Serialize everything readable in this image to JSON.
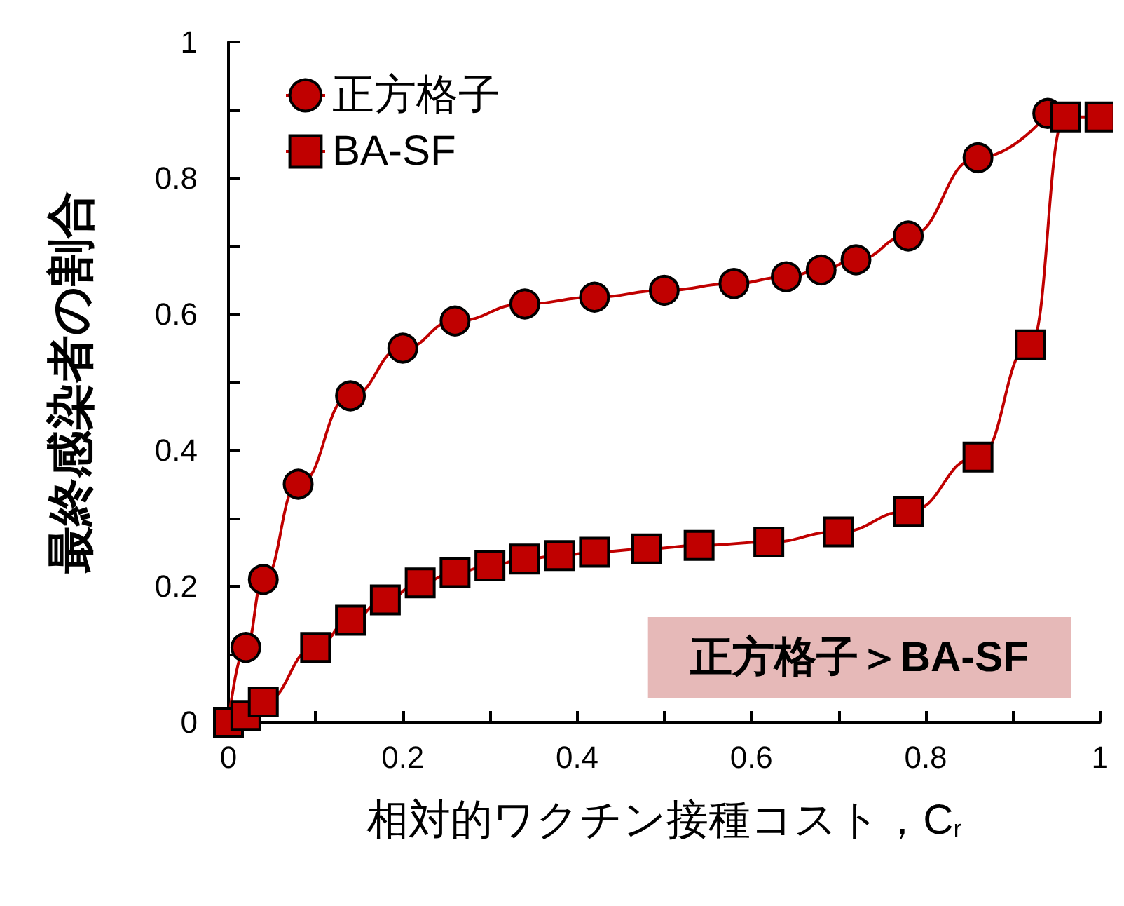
{
  "chart_data": {
    "type": "line",
    "xlabel": "相対的ワクチン接種コスト，C$_{r}$",
    "ylabel": "最終感染者の割合",
    "xlim": [
      0,
      1
    ],
    "xticks": [
      0,
      0.2,
      0.4,
      0.6,
      0.8,
      1
    ],
    "ylim": [
      0,
      1
    ],
    "yticks": [
      0,
      0.2,
      0.4,
      0.6,
      0.8,
      1
    ],
    "grid": false,
    "legend": "top left",
    "annotations": [
      "正方格子＞BA-SF"
    ],
    "series": [
      {
        "name": "正方格子",
        "color": "#c00000",
        "marker": "circle",
        "x": [
          0,
          0.02,
          0.04,
          0.08,
          0.14,
          0.2,
          0.26,
          0.34,
          0.42,
          0.5,
          0.58,
          0.64,
          0.68,
          0.72,
          0.78,
          0.86,
          0.94
        ],
        "values": [
          0,
          0.11,
          0.21,
          0.35,
          0.48,
          0.55,
          0.59,
          0.615,
          0.625,
          0.635,
          0.645,
          0.655,
          0.665,
          0.68,
          0.715,
          0.83,
          0.895
        ]
      },
      {
        "name": "BA-SF",
        "color": "#c00000",
        "marker": "square",
        "x": [
          0,
          0.02,
          0.04,
          0.1,
          0.14,
          0.18,
          0.22,
          0.26,
          0.3,
          0.34,
          0.38,
          0.42,
          0.48,
          0.54,
          0.62,
          0.7,
          0.78,
          0.86,
          0.92,
          0.96,
          1
        ],
        "values": [
          0,
          0.01,
          0.03,
          0.11,
          0.15,
          0.18,
          0.205,
          0.22,
          0.23,
          0.24,
          0.245,
          0.25,
          0.255,
          0.26,
          0.265,
          0.28,
          0.31,
          0.39,
          0.555,
          0.89,
          0.89
        ]
      }
    ]
  }
}
